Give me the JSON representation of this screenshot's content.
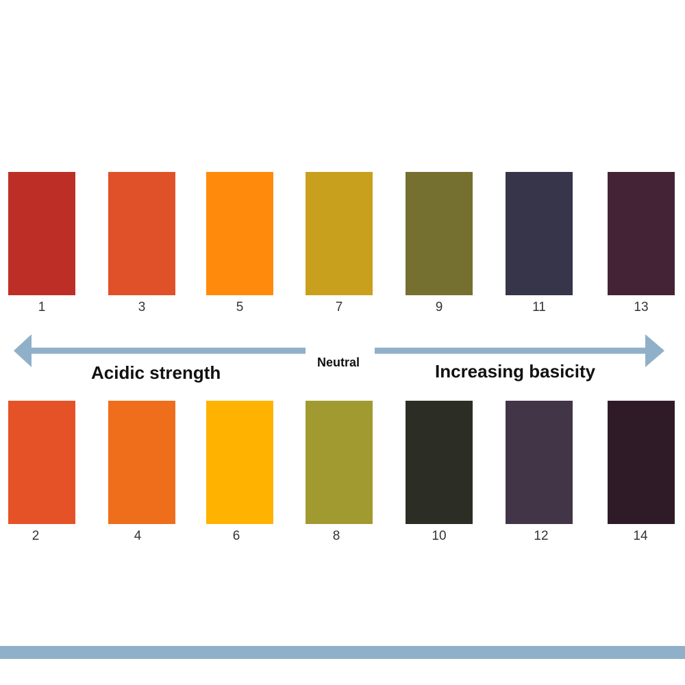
{
  "labels": {
    "acidic": "Acidic strength",
    "neutral": "Neutral",
    "basic": "Increasing basicity"
  },
  "colors": {
    "arrow": "#8fb0c8",
    "bar": "#8fb0c8"
  },
  "swatches": [
    {
      "ph": "1",
      "color": "#bd2f26"
    },
    {
      "ph": "2",
      "color": "#e65228"
    },
    {
      "ph": "3",
      "color": "#e15129"
    },
    {
      "ph": "4",
      "color": "#ef6e1c"
    },
    {
      "ph": "5",
      "color": "#ff8a0c"
    },
    {
      "ph": "6",
      "color": "#ffb300"
    },
    {
      "ph": "7",
      "color": "#c9a01d"
    },
    {
      "ph": "8",
      "color": "#a19a31"
    },
    {
      "ph": "9",
      "color": "#756f30"
    },
    {
      "ph": "10",
      "color": "#2c2d24"
    },
    {
      "ph": "11",
      "color": "#363549"
    },
    {
      "ph": "12",
      "color": "#423547"
    },
    {
      "ph": "13",
      "color": "#452337"
    },
    {
      "ph": "14",
      "color": "#2f1b28"
    }
  ]
}
